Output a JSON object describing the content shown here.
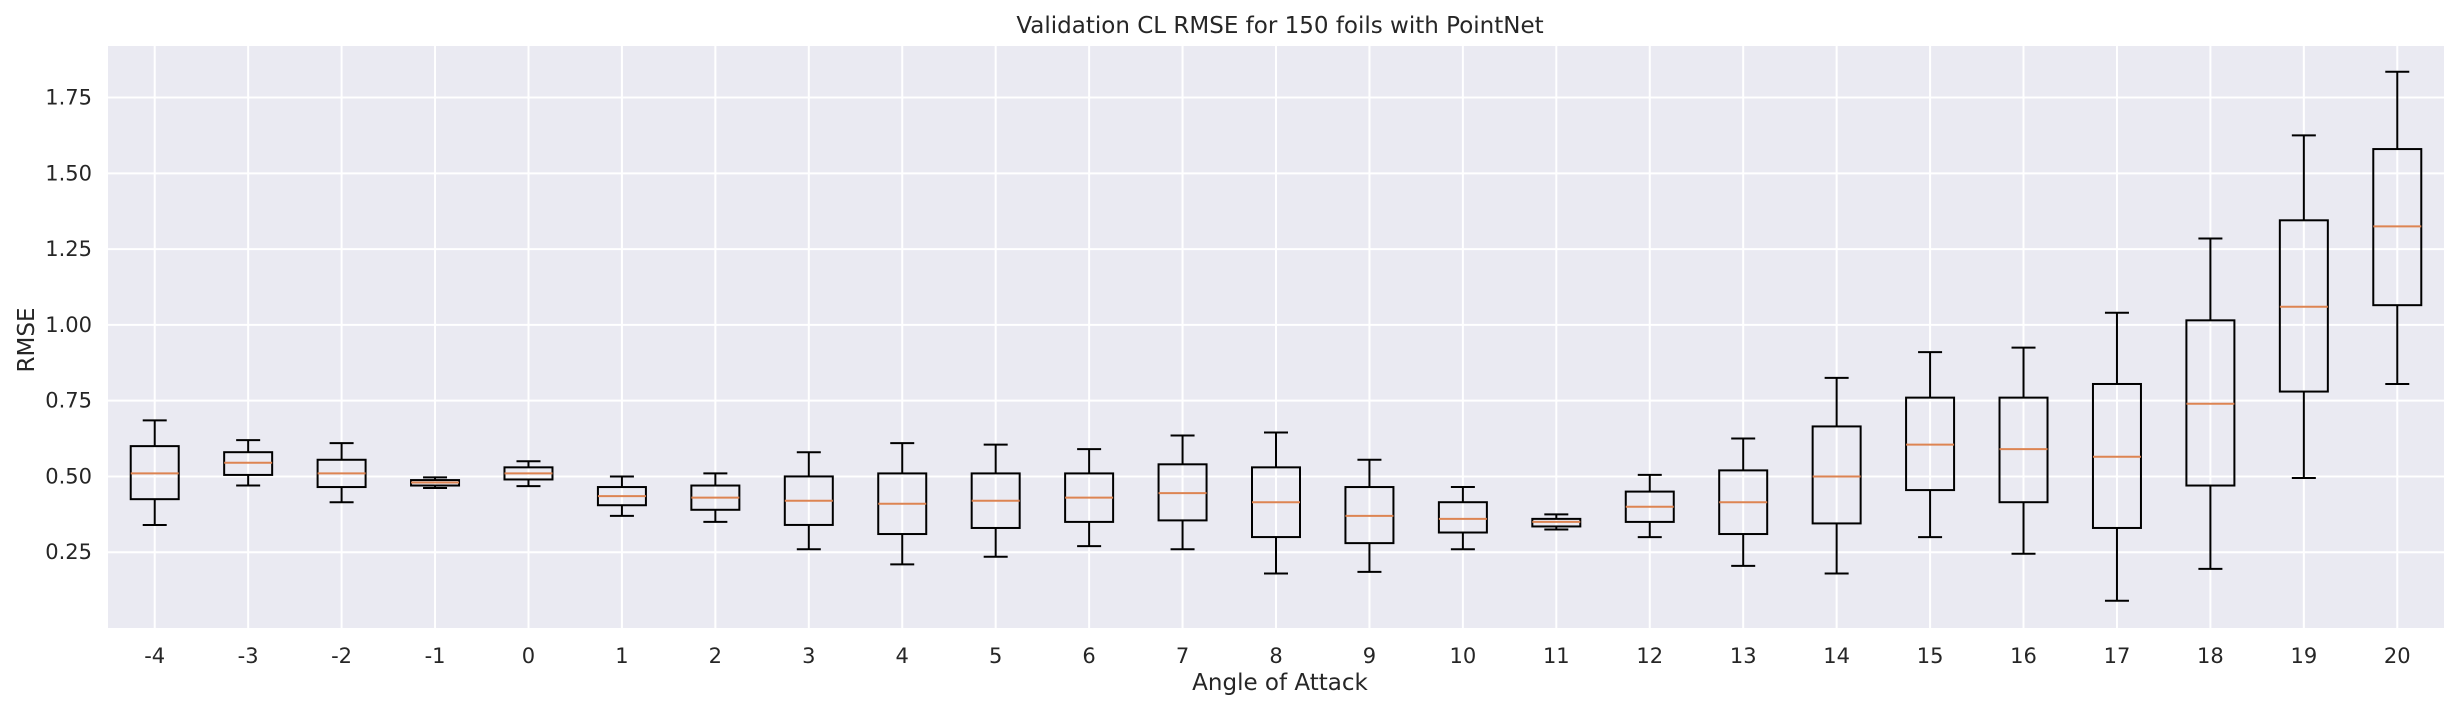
{
  "chart_data": {
    "type": "box",
    "title": "Validation CL RMSE for 150 foils with PointNet",
    "xlabel": "Angle of Attack",
    "ylabel": "RMSE",
    "ylim": [
      0.0,
      1.92
    ],
    "yticks": [
      0.25,
      0.5,
      0.75,
      1.0,
      1.25,
      1.5,
      1.75
    ],
    "ytick_labels": [
      "0.25",
      "0.50",
      "0.75",
      "1.00",
      "1.25",
      "1.50",
      "1.75"
    ],
    "grid": true,
    "categories": [
      "-4",
      "-3",
      "-2",
      "-1",
      "0",
      "1",
      "2",
      "3",
      "4",
      "5",
      "6",
      "7",
      "8",
      "9",
      "10",
      "11",
      "12",
      "13",
      "14",
      "15",
      "16",
      "17",
      "18",
      "19",
      "20"
    ],
    "boxes": [
      {
        "whislo": 0.34,
        "q1": 0.425,
        "med": 0.51,
        "q3": 0.6,
        "whishi": 0.685
      },
      {
        "whislo": 0.47,
        "q1": 0.505,
        "med": 0.545,
        "q3": 0.58,
        "whishi": 0.62
      },
      {
        "whislo": 0.415,
        "q1": 0.465,
        "med": 0.51,
        "q3": 0.555,
        "whishi": 0.61
      },
      {
        "whislo": 0.462,
        "q1": 0.47,
        "med": 0.48,
        "q3": 0.488,
        "whishi": 0.497
      },
      {
        "whislo": 0.468,
        "q1": 0.49,
        "med": 0.51,
        "q3": 0.53,
        "whishi": 0.55
      },
      {
        "whislo": 0.37,
        "q1": 0.405,
        "med": 0.435,
        "q3": 0.465,
        "whishi": 0.5
      },
      {
        "whislo": 0.35,
        "q1": 0.39,
        "med": 0.43,
        "q3": 0.47,
        "whishi": 0.51
      },
      {
        "whislo": 0.26,
        "q1": 0.34,
        "med": 0.42,
        "q3": 0.5,
        "whishi": 0.58
      },
      {
        "whislo": 0.21,
        "q1": 0.31,
        "med": 0.41,
        "q3": 0.51,
        "whishi": 0.61
      },
      {
        "whislo": 0.235,
        "q1": 0.33,
        "med": 0.42,
        "q3": 0.51,
        "whishi": 0.605
      },
      {
        "whislo": 0.27,
        "q1": 0.35,
        "med": 0.43,
        "q3": 0.51,
        "whishi": 0.59
      },
      {
        "whislo": 0.26,
        "q1": 0.355,
        "med": 0.445,
        "q3": 0.54,
        "whishi": 0.635
      },
      {
        "whislo": 0.18,
        "q1": 0.3,
        "med": 0.415,
        "q3": 0.53,
        "whishi": 0.645
      },
      {
        "whislo": 0.185,
        "q1": 0.28,
        "med": 0.37,
        "q3": 0.465,
        "whishi": 0.555
      },
      {
        "whislo": 0.26,
        "q1": 0.315,
        "med": 0.36,
        "q3": 0.415,
        "whishi": 0.465
      },
      {
        "whislo": 0.325,
        "q1": 0.335,
        "med": 0.35,
        "q3": 0.36,
        "whishi": 0.375
      },
      {
        "whislo": 0.3,
        "q1": 0.35,
        "med": 0.4,
        "q3": 0.45,
        "whishi": 0.505
      },
      {
        "whislo": 0.205,
        "q1": 0.31,
        "med": 0.415,
        "q3": 0.52,
        "whishi": 0.625
      },
      {
        "whislo": 0.18,
        "q1": 0.345,
        "med": 0.5,
        "q3": 0.665,
        "whishi": 0.825
      },
      {
        "whislo": 0.3,
        "q1": 0.455,
        "med": 0.605,
        "q3": 0.76,
        "whishi": 0.91
      },
      {
        "whislo": 0.245,
        "q1": 0.415,
        "med": 0.59,
        "q3": 0.76,
        "whishi": 0.925
      },
      {
        "whislo": 0.09,
        "q1": 0.33,
        "med": 0.565,
        "q3": 0.805,
        "whishi": 1.04
      },
      {
        "whislo": 0.195,
        "q1": 0.47,
        "med": 0.74,
        "q3": 1.015,
        "whishi": 1.285
      },
      {
        "whislo": 0.495,
        "q1": 0.78,
        "med": 1.06,
        "q3": 1.345,
        "whishi": 1.625
      },
      {
        "whislo": 0.805,
        "q1": 1.065,
        "med": 1.325,
        "q3": 1.58,
        "whishi": 1.835
      }
    ],
    "colors": {
      "background": "#eaeaf2",
      "grid": "#ffffff",
      "box": "#000000",
      "median": "#dd8452"
    }
  }
}
